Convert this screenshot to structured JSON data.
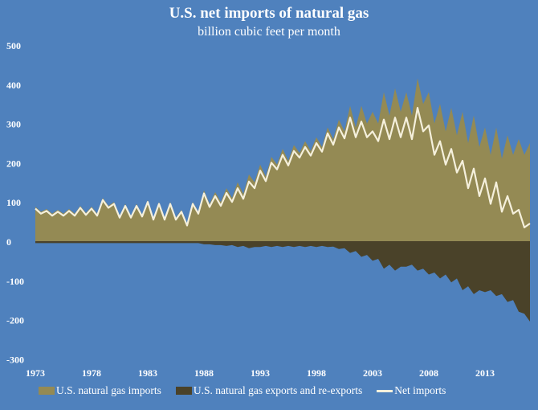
{
  "chart_data": {
    "type": "area",
    "title": "U.S. net imports of natural gas",
    "subtitle": "billion cubic feet per month",
    "ylim": [
      -300,
      500
    ],
    "yticks": [
      500,
      400,
      300,
      200,
      100,
      0,
      -100,
      -200,
      -300
    ],
    "xticks": [
      "1973",
      "1978",
      "1983",
      "1988",
      "1993",
      "1998",
      "2003",
      "2008",
      "2013"
    ],
    "grid": false,
    "legend_position": "bottom",
    "colors": {
      "background": "#4f81bd",
      "imports": "#948a54",
      "exports": "#4a4229",
      "net": "#f5f0dc"
    },
    "x": [
      "1973-01",
      "1973-07",
      "1974-01",
      "1974-07",
      "1975-01",
      "1975-07",
      "1976-01",
      "1976-07",
      "1977-01",
      "1977-07",
      "1978-01",
      "1978-07",
      "1979-01",
      "1979-07",
      "1980-01",
      "1980-07",
      "1981-01",
      "1981-07",
      "1982-01",
      "1982-07",
      "1983-01",
      "1983-07",
      "1984-01",
      "1984-07",
      "1985-01",
      "1985-07",
      "1986-01",
      "1986-07",
      "1987-01",
      "1987-07",
      "1988-01",
      "1988-07",
      "1989-01",
      "1989-07",
      "1990-01",
      "1990-07",
      "1991-01",
      "1991-07",
      "1992-01",
      "1992-07",
      "1993-01",
      "1993-07",
      "1994-01",
      "1994-07",
      "1995-01",
      "1995-07",
      "1996-01",
      "1996-07",
      "1997-01",
      "1997-07",
      "1998-01",
      "1998-07",
      "1999-01",
      "1999-07",
      "2000-01",
      "2000-07",
      "2001-01",
      "2001-07",
      "2002-01",
      "2002-07",
      "2003-01",
      "2003-07",
      "2004-01",
      "2004-07",
      "2005-01",
      "2005-07",
      "2006-01",
      "2006-07",
      "2007-01",
      "2007-07",
      "2008-01",
      "2008-07",
      "2009-01",
      "2009-07",
      "2010-01",
      "2010-07",
      "2011-01",
      "2011-07",
      "2012-01",
      "2012-07",
      "2013-01",
      "2013-07",
      "2014-01",
      "2014-07",
      "2015-01",
      "2015-07",
      "2016-01",
      "2016-07",
      "2017-01"
    ],
    "series": [
      {
        "name": "U.S. natural gas imports",
        "kind": "area",
        "values": [
          88,
          75,
          82,
          70,
          80,
          70,
          82,
          70,
          90,
          72,
          88,
          70,
          110,
          90,
          100,
          65,
          95,
          65,
          95,
          68,
          105,
          60,
          100,
          60,
          100,
          60,
          80,
          45,
          100,
          75,
          130,
          95,
          125,
          100,
          135,
          110,
          150,
          120,
          170,
          150,
          195,
          165,
          215,
          195,
          235,
          205,
          245,
          225,
          255,
          230,
          265,
          240,
          290,
          260,
          310,
          280,
          345,
          290,
          345,
          300,
          330,
          300,
          380,
          320,
          390,
          330,
          380,
          320,
          415,
          350,
          380,
          300,
          350,
          280,
          340,
          270,
          330,
          250,
          320,
          240,
          290,
          220,
          290,
          210,
          270,
          220,
          260,
          220,
          250
        ]
      },
      {
        "name": "U.S. natural gas exports and re-exports",
        "kind": "area",
        "values": [
          -5,
          -5,
          -5,
          -5,
          -5,
          -5,
          -5,
          -5,
          -5,
          -5,
          -5,
          -5,
          -5,
          -5,
          -5,
          -5,
          -5,
          -5,
          -5,
          -5,
          -5,
          -5,
          -5,
          -5,
          -5,
          -5,
          -5,
          -5,
          -5,
          -5,
          -8,
          -8,
          -10,
          -10,
          -12,
          -10,
          -15,
          -12,
          -18,
          -15,
          -15,
          -12,
          -15,
          -12,
          -15,
          -12,
          -15,
          -12,
          -15,
          -12,
          -15,
          -12,
          -15,
          -14,
          -20,
          -18,
          -30,
          -25,
          -40,
          -35,
          -50,
          -45,
          -70,
          -60,
          -75,
          -65,
          -65,
          -60,
          -75,
          -70,
          -85,
          -80,
          -95,
          -85,
          -105,
          -95,
          -125,
          -115,
          -135,
          -125,
          -130,
          -125,
          -140,
          -135,
          -155,
          -150,
          -180,
          -185,
          -205
        ]
      },
      {
        "name": "Net imports",
        "kind": "line",
        "values": [
          83,
          70,
          77,
          65,
          75,
          65,
          77,
          65,
          85,
          67,
          83,
          65,
          105,
          85,
          95,
          60,
          90,
          60,
          90,
          63,
          100,
          55,
          95,
          55,
          95,
          55,
          75,
          40,
          95,
          70,
          122,
          87,
          115,
          90,
          123,
          100,
          135,
          108,
          152,
          135,
          180,
          153,
          200,
          183,
          220,
          193,
          230,
          213,
          240,
          218,
          250,
          228,
          275,
          246,
          290,
          262,
          315,
          265,
          305,
          265,
          280,
          255,
          310,
          260,
          315,
          265,
          315,
          260,
          340,
          280,
          295,
          220,
          255,
          195,
          235,
          175,
          205,
          135,
          185,
          115,
          160,
          95,
          150,
          75,
          115,
          70,
          80,
          35,
          45
        ]
      }
    ]
  }
}
